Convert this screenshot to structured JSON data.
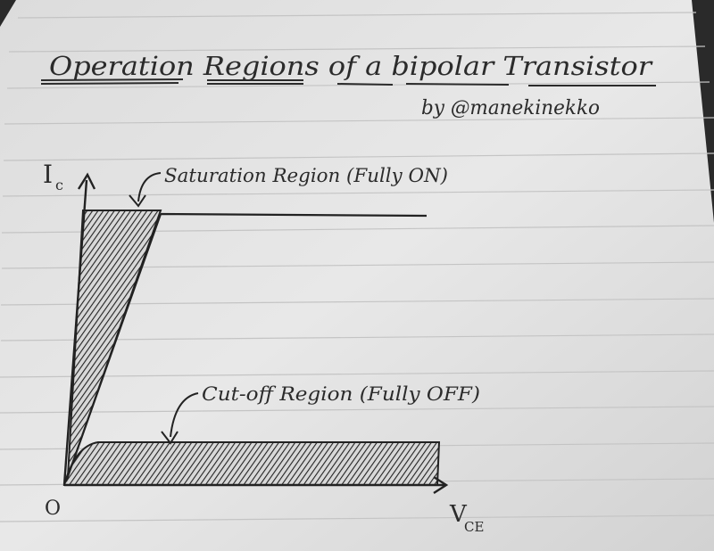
{
  "diagram": {
    "title": "Operation Regions of a bipolar Transistor",
    "author": "by @manekinekko",
    "y_axis_label": "I",
    "y_axis_subscript": "c",
    "x_axis_label": "V",
    "x_axis_subscript": "CE",
    "origin_label": "O",
    "saturation_label": "Saturation Region (Fully ON)",
    "cutoff_label": "Cut-off Region (Fully OFF)"
  },
  "colors": {
    "paper": "#e6e6e6",
    "ink": "#2b2b2b",
    "ruled_line": "#c4c4c4",
    "background": "#2a2a2a"
  }
}
